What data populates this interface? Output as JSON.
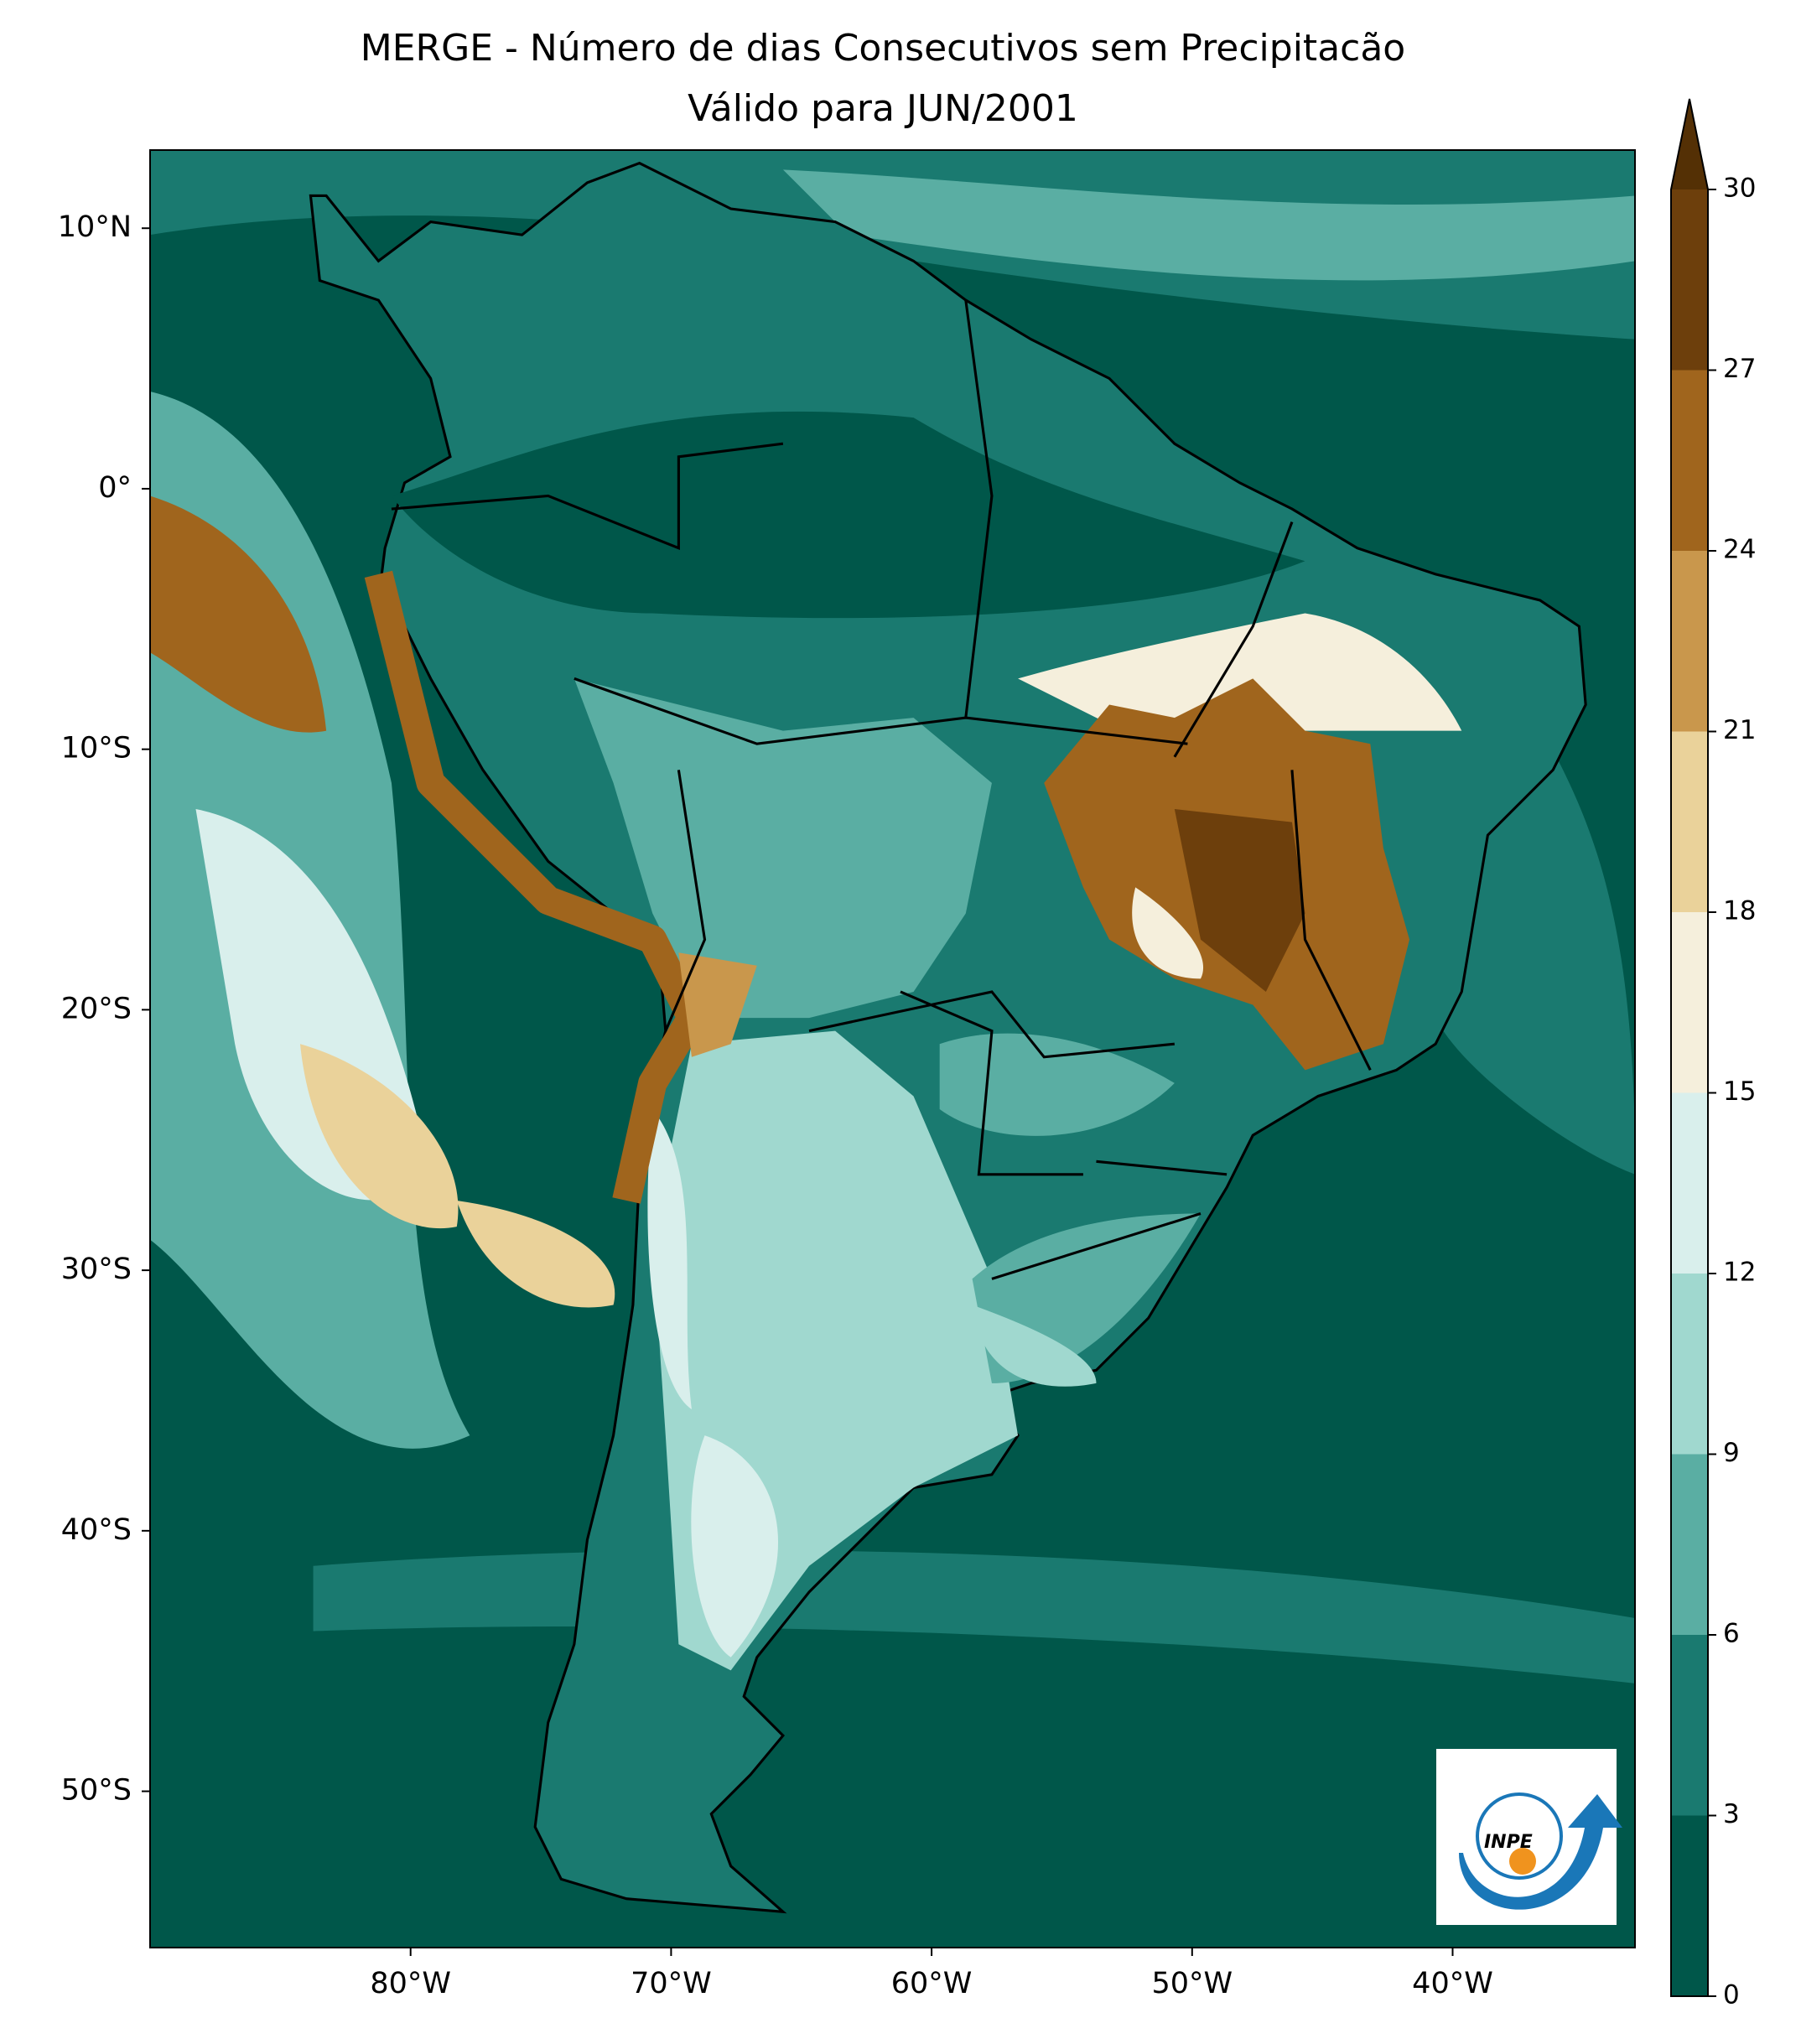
{
  "title": [
    "MERGE - Número de dias Consecutivos sem Precipitacão",
    "Válido para JUN/2001"
  ],
  "map": {
    "xlim": [
      -90,
      -33
    ],
    "ylim": [
      -56,
      13
    ],
    "xticks": [
      {
        "value": -80,
        "label": "80°W"
      },
      {
        "value": -70,
        "label": "70°W"
      },
      {
        "value": -60,
        "label": "60°W"
      },
      {
        "value": -50,
        "label": "50°W"
      },
      {
        "value": -40,
        "label": "40°W"
      }
    ],
    "yticks": [
      {
        "value": 10,
        "label": "10°N"
      },
      {
        "value": 0,
        "label": "0°"
      },
      {
        "value": -10,
        "label": "10°S"
      },
      {
        "value": -20,
        "label": "20°S"
      },
      {
        "value": -30,
        "label": "30°S"
      },
      {
        "value": -40,
        "label": "40°S"
      },
      {
        "value": -50,
        "label": "50°S"
      }
    ]
  },
  "colorbar": {
    "levels": [
      0,
      3,
      6,
      9,
      12,
      15,
      18,
      21,
      24,
      27,
      30
    ],
    "colors": [
      "#00574a",
      "#1a7a70",
      "#5aaea3",
      "#a0d8cf",
      "#d9efec",
      "#f5efdc",
      "#ead29a",
      "#c9974c",
      "#a0651d",
      "#6d3f0c"
    ],
    "extend_color": "#543005"
  },
  "logo": {
    "text": "INPE"
  }
}
